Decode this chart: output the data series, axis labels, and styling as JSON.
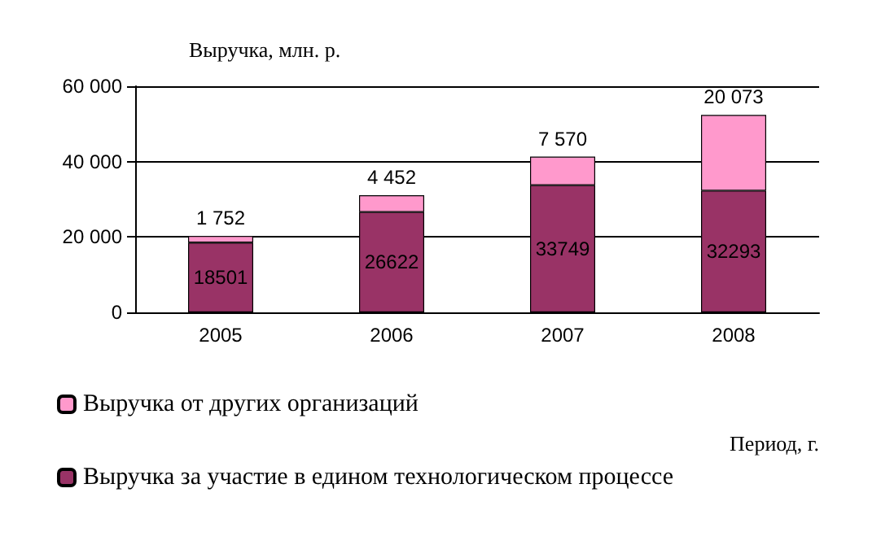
{
  "chart_data": {
    "type": "bar",
    "ylabel": "Выручка, млн. р.",
    "xlabel": "Период, г.",
    "categories": [
      "2005",
      "2006",
      "2007",
      "2008"
    ],
    "stacked": true,
    "series": [
      {
        "name": "Выручка за участие в едином технологическом процессе",
        "color": "#993366",
        "values": [
          18501,
          26622,
          33749,
          32293
        ],
        "value_labels": [
          "18501",
          "26622",
          "33749",
          "32293"
        ]
      },
      {
        "name": "Выручка от других организаций",
        "color": "#ff99cc",
        "values": [
          1752,
          4452,
          7570,
          20073
        ],
        "value_labels": [
          "1 752",
          "4 452",
          "7 570",
          "20 073"
        ]
      }
    ],
    "ylim": [
      0,
      60000
    ],
    "yticks": [
      {
        "value": 0,
        "label": "0"
      },
      {
        "value": 20000,
        "label": "20 000"
      },
      {
        "value": 40000,
        "label": "40 000"
      },
      {
        "value": 60000,
        "label": "60 000"
      }
    ],
    "grid": "y",
    "legend": "bottom left"
  }
}
